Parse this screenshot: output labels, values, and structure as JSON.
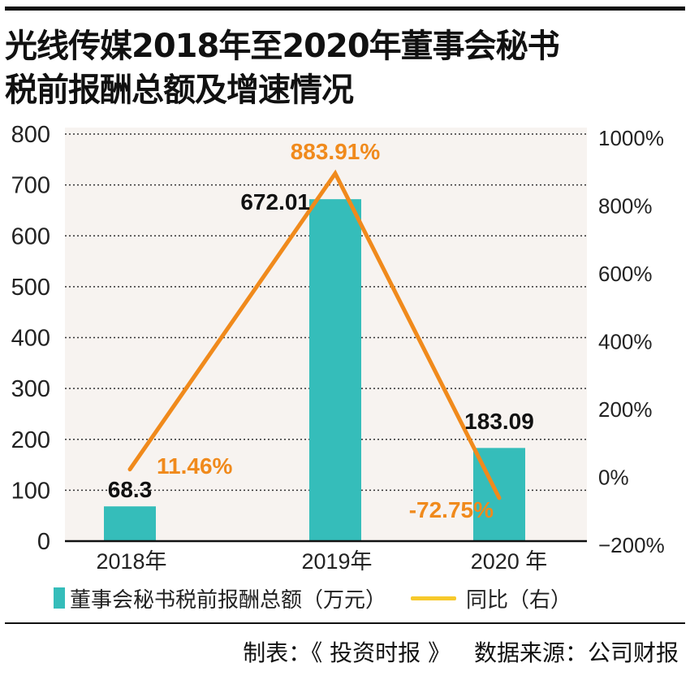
{
  "title": {
    "line1": "光线传媒2018年至2020年董事会秘书",
    "line2": "税前报酬总额及增速情况"
  },
  "chart_data": {
    "type": "bar",
    "title": "光线传媒2018年至2020年董事会秘书税前报酬总额及增速情况",
    "categories": [
      "2018年",
      "2019年",
      "2020 年"
    ],
    "series": [
      {
        "name": "董事会秘书税前报酬总额（万元）",
        "type": "bar",
        "axis": "left",
        "color": "#35bdba",
        "values": [
          68.3,
          672.01,
          183.09
        ],
        "labels": [
          "68.3",
          "672.01",
          "183.09"
        ]
      },
      {
        "name": "同比（右）",
        "type": "line",
        "axis": "right",
        "color": "#f08a1c",
        "legend_color": "#f7c92b",
        "values": [
          11.46,
          883.91,
          -72.75
        ],
        "labels": [
          "11.46%",
          "883.91%",
          "-72.75%"
        ]
      }
    ],
    "left_axis": {
      "ylim": [
        0,
        800
      ],
      "ticks": [
        0,
        100,
        200,
        300,
        400,
        500,
        600,
        700,
        800
      ],
      "tick_labels": [
        "0",
        "100",
        "200",
        "300",
        "400",
        "500",
        "600",
        "700",
        "800"
      ]
    },
    "right_axis": {
      "ylim": [
        -200,
        1000
      ],
      "ticks": [
        -200,
        0,
        200,
        400,
        600,
        800,
        1000
      ],
      "tick_labels": [
        "-200%",
        "0%",
        "200%",
        "400%",
        "600%",
        "800%",
        "1000%"
      ]
    },
    "grid": true,
    "grid_style": "dotted",
    "plot_background": "#f7f3f0",
    "legend_position": "bottom"
  },
  "legend": {
    "bar_label": "董事会秘书税前报酬总额（万元）",
    "line_label": "同比（右）"
  },
  "footer": {
    "maker": "制表：《 投资时报 》",
    "source": "数据来源：公司财报"
  }
}
